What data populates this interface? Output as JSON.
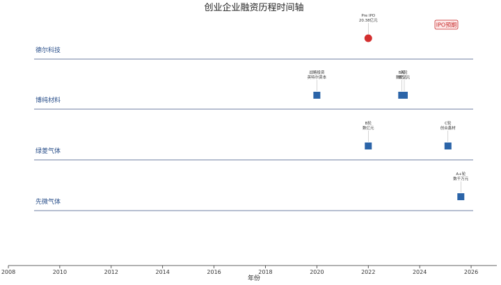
{
  "chart_data": {
    "type": "timeline",
    "title": "创业企业融资历程时间轴",
    "xlabel": "年份",
    "xlim": [
      2008,
      2027
    ],
    "xticks": [
      2008,
      2010,
      2012,
      2014,
      2016,
      2018,
      2020,
      2022,
      2024,
      2026
    ],
    "badge": {
      "text": "IPO预期",
      "color": "#c62828",
      "position": "top-right"
    },
    "colors": {
      "vc": "#2b64a8",
      "ipo": "#d32f2f",
      "line": "#8a96b3",
      "label": "#2a4f8a"
    },
    "companies": [
      {
        "name": "德尔科技",
        "events": [
          {
            "x": 2022.0,
            "round": "Pre IPO",
            "amount": "20.38亿元",
            "kind": "ipo"
          }
        ]
      },
      {
        "name": "博纯材料",
        "events": [
          {
            "x": 2020.0,
            "round": "战略投资",
            "amount": "英特尔资本",
            "kind": "vc"
          },
          {
            "x": 2023.3,
            "round": "B轮",
            "amount": "数亿元",
            "kind": "vc"
          },
          {
            "x": 2023.4,
            "round": "A轮",
            "amount": "数亿元",
            "kind": "vc"
          }
        ]
      },
      {
        "name": "绿菱气体",
        "events": [
          {
            "x": 2022.0,
            "round": "B轮",
            "amount": "数亿元",
            "kind": "vc"
          },
          {
            "x": 2025.1,
            "round": "C轮",
            "amount": "创合鑫材",
            "kind": "vc"
          }
        ]
      },
      {
        "name": "先微气体",
        "events": [
          {
            "x": 2025.6,
            "round": "A+轮",
            "amount": "数千万元",
            "kind": "vc"
          }
        ]
      }
    ]
  }
}
